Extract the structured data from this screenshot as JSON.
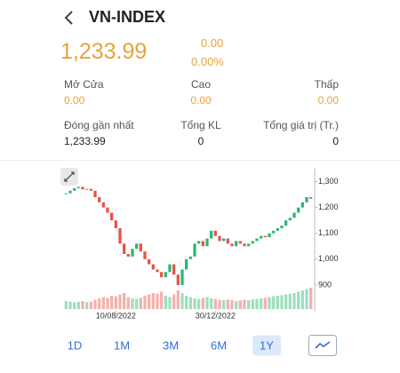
{
  "header": {
    "title": "VN-INDEX"
  },
  "quote": {
    "price": "1,233.99",
    "change": "0.00",
    "change_pct": "0.00%"
  },
  "stats": [
    {
      "label": "Mở Cửa",
      "value": "0.00"
    },
    {
      "label": "Cao",
      "value": "0.00"
    },
    {
      "label": "Thấp",
      "value": "0.00"
    },
    {
      "label": "Đóng gần nhất",
      "value": "1,233.99"
    },
    {
      "label": "Tổng KL",
      "value": "0"
    },
    {
      "label": "Tổng giá trị (Tr.)",
      "value": "0"
    }
  ],
  "chart_data": {
    "type": "candlestick",
    "close": [
      1255,
      1265,
      1275,
      1280,
      1270,
      1272,
      1265,
      1240,
      1220,
      1200,
      1180,
      1150,
      1120,
      1060,
      1020,
      1010,
      1040,
      1060,
      1030,
      1000,
      980,
      960,
      950,
      930,
      950,
      980,
      940,
      900,
      960,
      1000,
      1010,
      1060,
      1070,
      1050,
      1080,
      1110,
      1090,
      1070,
      1080,
      1060,
      1050,
      1070,
      1060,
      1050,
      1060,
      1070,
      1080,
      1090,
      1085,
      1100,
      1110,
      1120,
      1130,
      1150,
      1160,
      1180,
      1200,
      1220,
      1240,
      1234
    ],
    "volume": [
      30,
      28,
      25,
      27,
      30,
      26,
      28,
      35,
      40,
      45,
      42,
      50,
      48,
      55,
      60,
      45,
      40,
      38,
      42,
      50,
      55,
      60,
      58,
      65,
      50,
      45,
      55,
      70,
      60,
      50,
      45,
      40,
      38,
      42,
      45,
      40,
      38,
      35,
      33,
      36,
      34,
      30,
      32,
      35,
      33,
      36,
      38,
      40,
      42,
      45,
      48,
      50,
      52,
      55,
      58,
      60,
      65,
      70,
      75,
      80
    ],
    "ylim": [
      800,
      1350
    ],
    "yticks": [
      900,
      {
        "value": 1000,
        "label": "1,000"
      },
      {
        "value": 1100,
        "label": "1,100"
      },
      {
        "value": 1200,
        "label": "1,200"
      },
      {
        "value": 1300,
        "label": "1,300"
      }
    ],
    "xticks": [
      {
        "value": 12,
        "label": "10/08/2022"
      },
      {
        "value": 36,
        "label": "30/12/2022"
      }
    ],
    "up_color": "#2bb673",
    "down_color": "#e5534b"
  },
  "ranges": {
    "options": [
      "1D",
      "1M",
      "3M",
      "6M",
      "1Y"
    ],
    "selected": 4
  }
}
